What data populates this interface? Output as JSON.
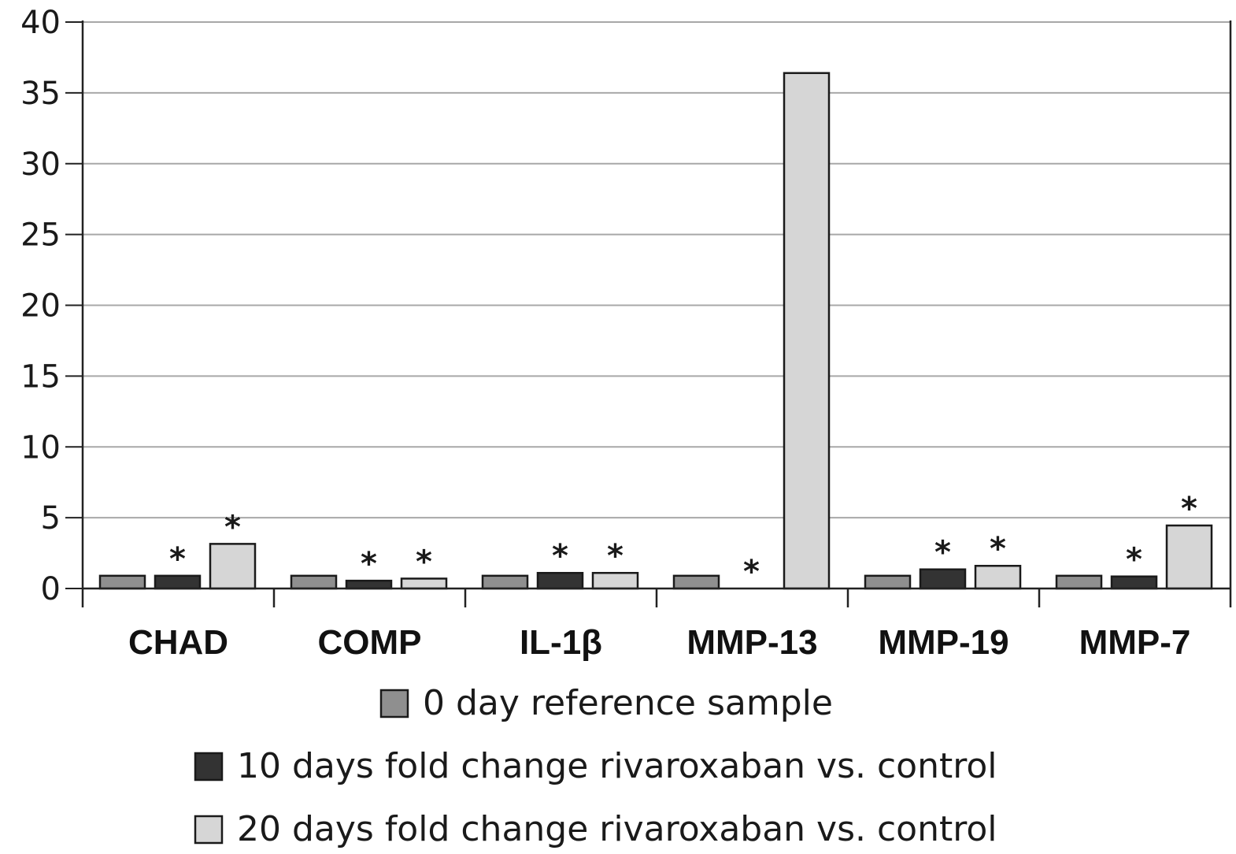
{
  "chart_data": {
    "type": "bar",
    "categories": [
      "CHAD",
      "COMP",
      "IL-1β",
      "MMP-13",
      "MMP-19",
      "MMP-7"
    ],
    "series": [
      {
        "name": "0 day reference sample",
        "color": "#8f8f8f",
        "values": [
          0.9,
          0.9,
          0.9,
          0.9,
          0.9,
          0.9
        ],
        "significant": [
          false,
          false,
          false,
          false,
          false,
          false
        ]
      },
      {
        "name": "10 days fold change rivaroxaban vs. control",
        "color": "#333333",
        "values": [
          0.9,
          0.55,
          1.1,
          0.0,
          1.35,
          0.85
        ],
        "significant": [
          true,
          true,
          true,
          true,
          true,
          true
        ]
      },
      {
        "name": "20 days fold change rivaroxaban vs. control",
        "color": "#d6d6d6",
        "values": [
          3.15,
          0.7,
          1.1,
          36.4,
          1.6,
          4.45
        ],
        "significant": [
          true,
          true,
          true,
          false,
          true,
          true
        ]
      }
    ],
    "significance_marker": "*",
    "ylim": [
      0,
      40
    ],
    "yticks": [
      "0",
      "5",
      "10",
      "15",
      "20",
      "25",
      "30",
      "35",
      "40"
    ],
    "grid": true,
    "legend_position": "bottom",
    "title": "",
    "xlabel": "",
    "ylabel": ""
  }
}
